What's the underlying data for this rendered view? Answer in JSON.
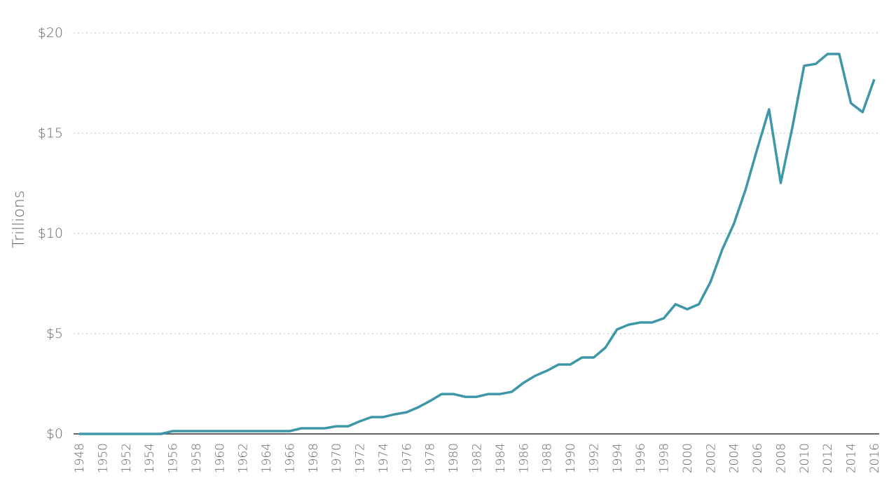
{
  "chart_data": {
    "type": "line",
    "y_label": "Trillions",
    "x": [
      1948,
      1949,
      1950,
      1951,
      1952,
      1953,
      1954,
      1955,
      1956,
      1957,
      1958,
      1959,
      1960,
      1961,
      1962,
      1963,
      1964,
      1965,
      1966,
      1967,
      1968,
      1969,
      1970,
      1971,
      1972,
      1973,
      1974,
      1975,
      1976,
      1977,
      1978,
      1979,
      1980,
      1981,
      1982,
      1983,
      1984,
      1985,
      1986,
      1987,
      1988,
      1989,
      1990,
      1991,
      1992,
      1993,
      1994,
      1995,
      1996,
      1997,
      1998,
      1999,
      2000,
      2001,
      2002,
      2003,
      2004,
      2005,
      2006,
      2007,
      2008,
      2009,
      2010,
      2011,
      2012,
      2013,
      2014,
      2015,
      2016
    ],
    "series": [
      {
        "color": "#3e97a8",
        "values": [
          0,
          0,
          0,
          0,
          0,
          0,
          0,
          0,
          0.14,
          0.14,
          0.14,
          0.14,
          0.14,
          0.14,
          0.14,
          0.14,
          0.14,
          0.14,
          0.14,
          0.28,
          0.28,
          0.28,
          0.38,
          0.38,
          0.63,
          0.84,
          0.84,
          0.98,
          1.08,
          1.33,
          1.64,
          1.99,
          1.99,
          1.85,
          1.85,
          1.99,
          1.99,
          2.1,
          2.55,
          2.9,
          3.15,
          3.46,
          3.46,
          3.81,
          3.81,
          4.3,
          5.21,
          5.45,
          5.56,
          5.56,
          5.77,
          6.47,
          6.22,
          6.47,
          7.59,
          9.2,
          10.49,
          12.2,
          14.23,
          16.19,
          12.52,
          15.31,
          18.36,
          18.46,
          18.95,
          18.95,
          16.5,
          16.05,
          17.69
        ]
      }
    ],
    "xlim": [
      1948,
      2016
    ],
    "xticks": [
      1948,
      1950,
      1952,
      1954,
      1956,
      1958,
      1960,
      1962,
      1964,
      1966,
      1968,
      1970,
      1972,
      1974,
      1976,
      1978,
      1980,
      1982,
      1984,
      1986,
      1988,
      1990,
      1992,
      1994,
      1996,
      1998,
      2000,
      2002,
      2004,
      2006,
      2008,
      2010,
      2012,
      2014,
      2016
    ],
    "ylim": [
      0,
      20
    ],
    "yticks": [
      {
        "value": 0,
        "label": "$0"
      },
      {
        "value": 5,
        "label": "$5"
      },
      {
        "value": 10,
        "label": "$10"
      },
      {
        "value": 15,
        "label": "$15"
      },
      {
        "value": 20,
        "label": "$20"
      }
    ],
    "grid": true
  }
}
